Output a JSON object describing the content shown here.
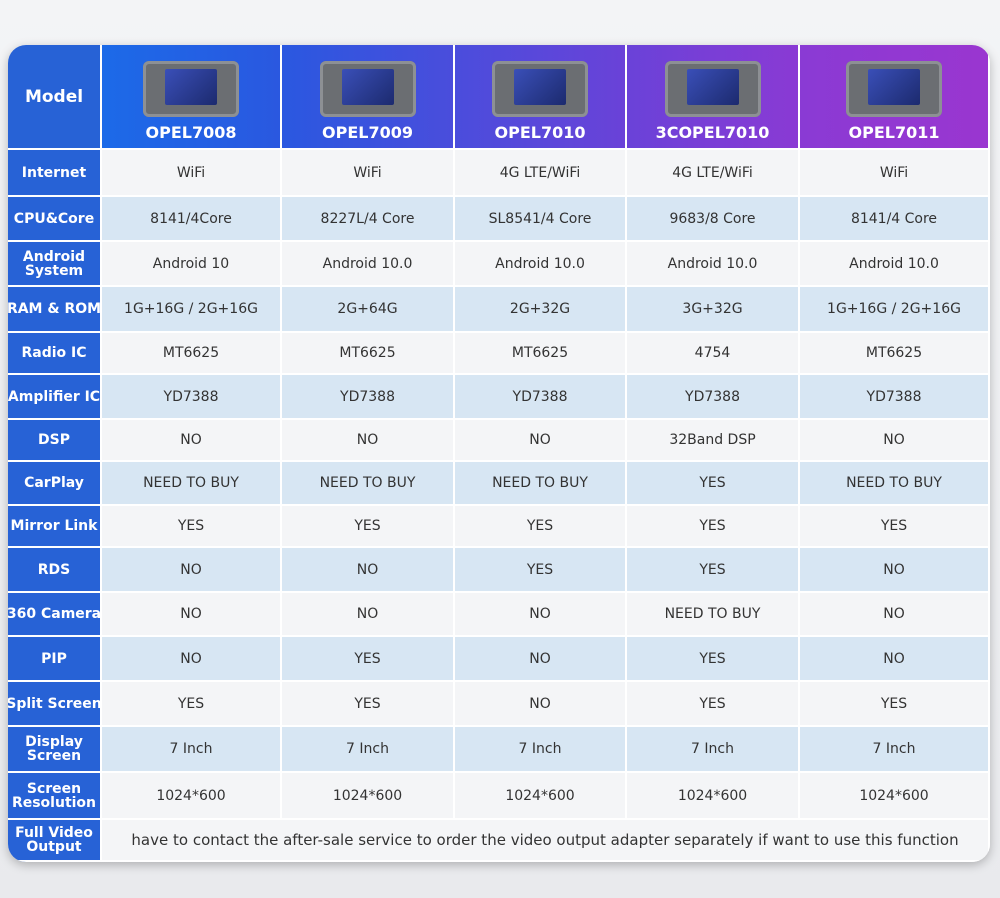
{
  "header": {
    "label": "Model",
    "models": [
      "OPEL7008",
      "OPEL7009",
      "OPEL7010",
      "3COPEL7010",
      "OPEL7011"
    ]
  },
  "rows": [
    {
      "label": [
        "Internet"
      ],
      "values": [
        "WiFi",
        "WiFi",
        "4G LTE/WiFi",
        "4G LTE/WiFi",
        "WiFi"
      ]
    },
    {
      "label": [
        "CPU&Core"
      ],
      "values": [
        "8141/4Core",
        "8227L/4 Core",
        "SL8541/4 Core",
        "9683/8 Core",
        "8141/4 Core"
      ]
    },
    {
      "label": [
        "Android",
        "System"
      ],
      "values": [
        "Android 10",
        "Android 10.0",
        "Android 10.0",
        "Android 10.0",
        "Android 10.0"
      ]
    },
    {
      "label": [
        "RAM & ROM"
      ],
      "values": [
        "1G+16G / 2G+16G",
        "2G+64G",
        "2G+32G",
        "3G+32G",
        "1G+16G / 2G+16G"
      ]
    },
    {
      "label": [
        "Radio IC"
      ],
      "values": [
        "MT6625",
        "MT6625",
        "MT6625",
        "4754",
        "MT6625"
      ]
    },
    {
      "label": [
        "Amplifier IC"
      ],
      "values": [
        "YD7388",
        "YD7388",
        "YD7388",
        "YD7388",
        "YD7388"
      ]
    },
    {
      "label": [
        "DSP"
      ],
      "values": [
        "NO",
        "NO",
        "NO",
        "32Band DSP",
        "NO"
      ]
    },
    {
      "label": [
        "CarPlay"
      ],
      "values": [
        "NEED TO BUY",
        "NEED TO BUY",
        "NEED TO BUY",
        "YES",
        "NEED TO BUY"
      ]
    },
    {
      "label": [
        "Mirror Link"
      ],
      "values": [
        "YES",
        "YES",
        "YES",
        "YES",
        "YES"
      ]
    },
    {
      "label": [
        "RDS"
      ],
      "values": [
        "NO",
        "NO",
        "YES",
        "YES",
        "NO"
      ]
    },
    {
      "label": [
        "360 Camera"
      ],
      "values": [
        "NO",
        "NO",
        "NO",
        "NEED TO BUY",
        "NO"
      ]
    },
    {
      "label": [
        "PIP"
      ],
      "values": [
        "NO",
        "YES",
        "NO",
        "YES",
        "NO"
      ]
    },
    {
      "label": [
        "Split Screen"
      ],
      "values": [
        "YES",
        "YES",
        "NO",
        "YES",
        "YES"
      ]
    },
    {
      "label": [
        "Display",
        "Screen"
      ],
      "values": [
        "7 Inch",
        "7 Inch",
        "7 Inch",
        "7 Inch",
        "7 Inch"
      ]
    },
    {
      "label": [
        "Screen",
        "Resolution"
      ],
      "values": [
        "1024*600",
        "1024*600",
        "1024*600",
        "1024*600",
        "1024*600"
      ]
    }
  ],
  "footer": {
    "label": [
      "Full Video",
      "Output"
    ],
    "text": "have to contact the after-sale service to order the video output adapter separately if want to use this function"
  }
}
